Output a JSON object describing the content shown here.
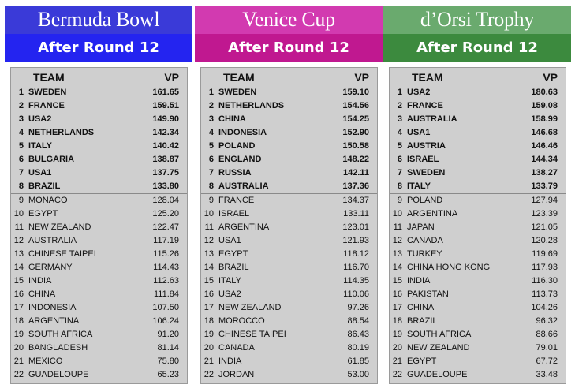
{
  "panels": [
    {
      "title": "Bermuda Bowl",
      "subtitle": "After Round 12",
      "colors": {
        "title_bg": "#3a3ad8",
        "subtitle_bg": "#2424f0"
      },
      "col_team": "TEAM",
      "col_vp": "VP",
      "rows": [
        {
          "rank": "1",
          "team": "SWEDEN",
          "vp": "161.65"
        },
        {
          "rank": "2",
          "team": "FRANCE",
          "vp": "159.51"
        },
        {
          "rank": "3",
          "team": "USA2",
          "vp": "149.90"
        },
        {
          "rank": "4",
          "team": "NETHERLANDS",
          "vp": "142.34"
        },
        {
          "rank": "5",
          "team": "ITALY",
          "vp": "140.42"
        },
        {
          "rank": "6",
          "team": "BULGARIA",
          "vp": "138.87"
        },
        {
          "rank": "7",
          "team": "USA1",
          "vp": "137.75"
        },
        {
          "rank": "8",
          "team": "BRAZIL",
          "vp": "133.80"
        },
        {
          "rank": "9",
          "team": "MONACO",
          "vp": "128.04"
        },
        {
          "rank": "10",
          "team": "EGYPT",
          "vp": "125.20"
        },
        {
          "rank": "11",
          "team": "NEW ZEALAND",
          "vp": "122.47"
        },
        {
          "rank": "12",
          "team": "AUSTRALIA",
          "vp": "117.19"
        },
        {
          "rank": "13",
          "team": "CHINESE TAIPEI",
          "vp": "115.26"
        },
        {
          "rank": "14",
          "team": "GERMANY",
          "vp": "114.43"
        },
        {
          "rank": "15",
          "team": "INDIA",
          "vp": "112.63"
        },
        {
          "rank": "16",
          "team": "CHINA",
          "vp": "111.84"
        },
        {
          "rank": "17",
          "team": "INDONESIA",
          "vp": "107.50"
        },
        {
          "rank": "18",
          "team": "ARGENTINA",
          "vp": "106.24"
        },
        {
          "rank": "19",
          "team": "SOUTH AFRICA",
          "vp": "91.20"
        },
        {
          "rank": "20",
          "team": "BANGLADESH",
          "vp": "81.14"
        },
        {
          "rank": "21",
          "team": "MEXICO",
          "vp": "75.80"
        },
        {
          "rank": "22",
          "team": "GUADELOUPE",
          "vp": "65.23"
        }
      ]
    },
    {
      "title": "Venice Cup",
      "subtitle": "After Round 12",
      "colors": {
        "title_bg": "#d23ab0",
        "subtitle_bg": "#c01890"
      },
      "col_team": "TEAM",
      "col_vp": "VP",
      "rows": [
        {
          "rank": "1",
          "team": "SWEDEN",
          "vp": "159.10"
        },
        {
          "rank": "2",
          "team": "NETHERLANDS",
          "vp": "154.56"
        },
        {
          "rank": "3",
          "team": "CHINA",
          "vp": "154.25"
        },
        {
          "rank": "4",
          "team": "INDONESIA",
          "vp": "152.90"
        },
        {
          "rank": "5",
          "team": "POLAND",
          "vp": "150.58"
        },
        {
          "rank": "6",
          "team": "ENGLAND",
          "vp": "148.22"
        },
        {
          "rank": "7",
          "team": "RUSSIA",
          "vp": "142.11"
        },
        {
          "rank": "8",
          "team": "AUSTRALIA",
          "vp": "137.36"
        },
        {
          "rank": "9",
          "team": "FRANCE",
          "vp": "134.37"
        },
        {
          "rank": "10",
          "team": "ISRAEL",
          "vp": "133.11"
        },
        {
          "rank": "11",
          "team": "ARGENTINA",
          "vp": "123.01"
        },
        {
          "rank": "12",
          "team": "USA1",
          "vp": "121.93"
        },
        {
          "rank": "13",
          "team": "EGYPT",
          "vp": "118.12"
        },
        {
          "rank": "14",
          "team": "BRAZIL",
          "vp": "116.70"
        },
        {
          "rank": "15",
          "team": "ITALY",
          "vp": "114.35"
        },
        {
          "rank": "16",
          "team": "USA2",
          "vp": "110.06"
        },
        {
          "rank": "17",
          "team": "NEW ZEALAND",
          "vp": "97.26"
        },
        {
          "rank": "18",
          "team": "MOROCCO",
          "vp": "88.54"
        },
        {
          "rank": "19",
          "team": "CHINESE TAIPEI",
          "vp": "86.43"
        },
        {
          "rank": "20",
          "team": "CANADA",
          "vp": "80.19"
        },
        {
          "rank": "21",
          "team": "INDIA",
          "vp": "61.85"
        },
        {
          "rank": "22",
          "team": "JORDAN",
          "vp": "53.00"
        }
      ]
    },
    {
      "title": "d’Orsi Trophy",
      "subtitle": "After Round 12",
      "colors": {
        "title_bg": "#6aaa6e",
        "subtitle_bg": "#3c8a3e"
      },
      "col_team": "TEAM",
      "col_vp": "VP",
      "rows": [
        {
          "rank": "1",
          "team": "USA2",
          "vp": "180.63"
        },
        {
          "rank": "2",
          "team": "FRANCE",
          "vp": "159.08"
        },
        {
          "rank": "3",
          "team": "AUSTRALIA",
          "vp": "158.99"
        },
        {
          "rank": "4",
          "team": "USA1",
          "vp": "146.68"
        },
        {
          "rank": "5",
          "team": "AUSTRIA",
          "vp": "146.46"
        },
        {
          "rank": "6",
          "team": "ISRAEL",
          "vp": "144.34"
        },
        {
          "rank": "7",
          "team": "SWEDEN",
          "vp": "138.27"
        },
        {
          "rank": "8",
          "team": "ITALY",
          "vp": "133.79"
        },
        {
          "rank": "9",
          "team": "POLAND",
          "vp": "127.94"
        },
        {
          "rank": "10",
          "team": "ARGENTINA",
          "vp": "123.39"
        },
        {
          "rank": "11",
          "team": "JAPAN",
          "vp": "121.05"
        },
        {
          "rank": "12",
          "team": "CANADA",
          "vp": "120.28"
        },
        {
          "rank": "13",
          "team": "TURKEY",
          "vp": "119.69"
        },
        {
          "rank": "14",
          "team": "CHINA HONG KONG",
          "vp": "117.93"
        },
        {
          "rank": "15",
          "team": "INDIA",
          "vp": "116.30"
        },
        {
          "rank": "16",
          "team": "PAKISTAN",
          "vp": "113.73"
        },
        {
          "rank": "17",
          "team": "CHINA",
          "vp": "104.26"
        },
        {
          "rank": "18",
          "team": "BRAZIL",
          "vp": "96.32"
        },
        {
          "rank": "19",
          "team": "SOUTH AFRICA",
          "vp": "88.66"
        },
        {
          "rank": "20",
          "team": "NEW ZEALAND",
          "vp": "79.01"
        },
        {
          "rank": "21",
          "team": "EGYPT",
          "vp": "67.72"
        },
        {
          "rank": "22",
          "team": "GUADELOUPE",
          "vp": "33.48"
        }
      ]
    }
  ]
}
